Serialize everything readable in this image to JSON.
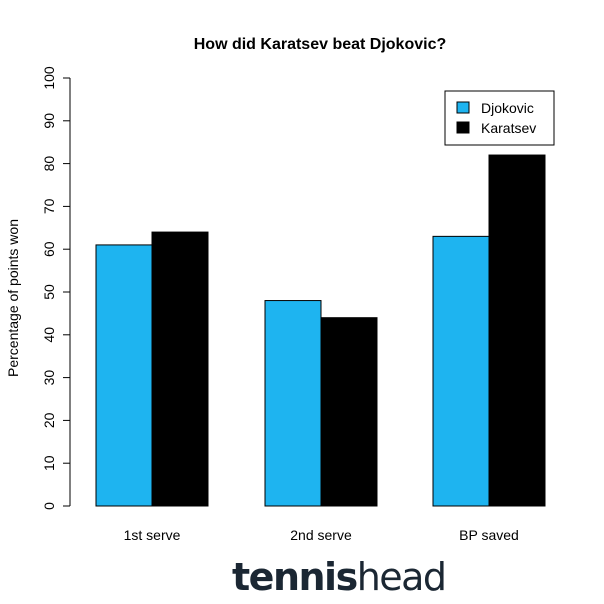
{
  "chart_data": {
    "type": "bar",
    "title": "How did Karatsev beat Djokovic?",
    "xlabel": "",
    "ylabel": "Percentage of points won",
    "categories": [
      "1st serve",
      "2nd serve",
      "BP saved"
    ],
    "series": [
      {
        "name": "Djokovic",
        "values": [
          61,
          48,
          63
        ],
        "color": "#1eb4f0"
      },
      {
        "name": "Karatsev",
        "values": [
          64,
          44,
          82
        ],
        "color": "#000000"
      }
    ],
    "ylim": [
      0,
      100
    ],
    "yticks": [
      "0",
      "10",
      "20",
      "30",
      "40",
      "50",
      "60",
      "70",
      "80",
      "90",
      "100"
    ],
    "grid": false,
    "legend_position": "top-right"
  },
  "brand": {
    "logo_bold": "tennis",
    "logo_light": "head"
  }
}
